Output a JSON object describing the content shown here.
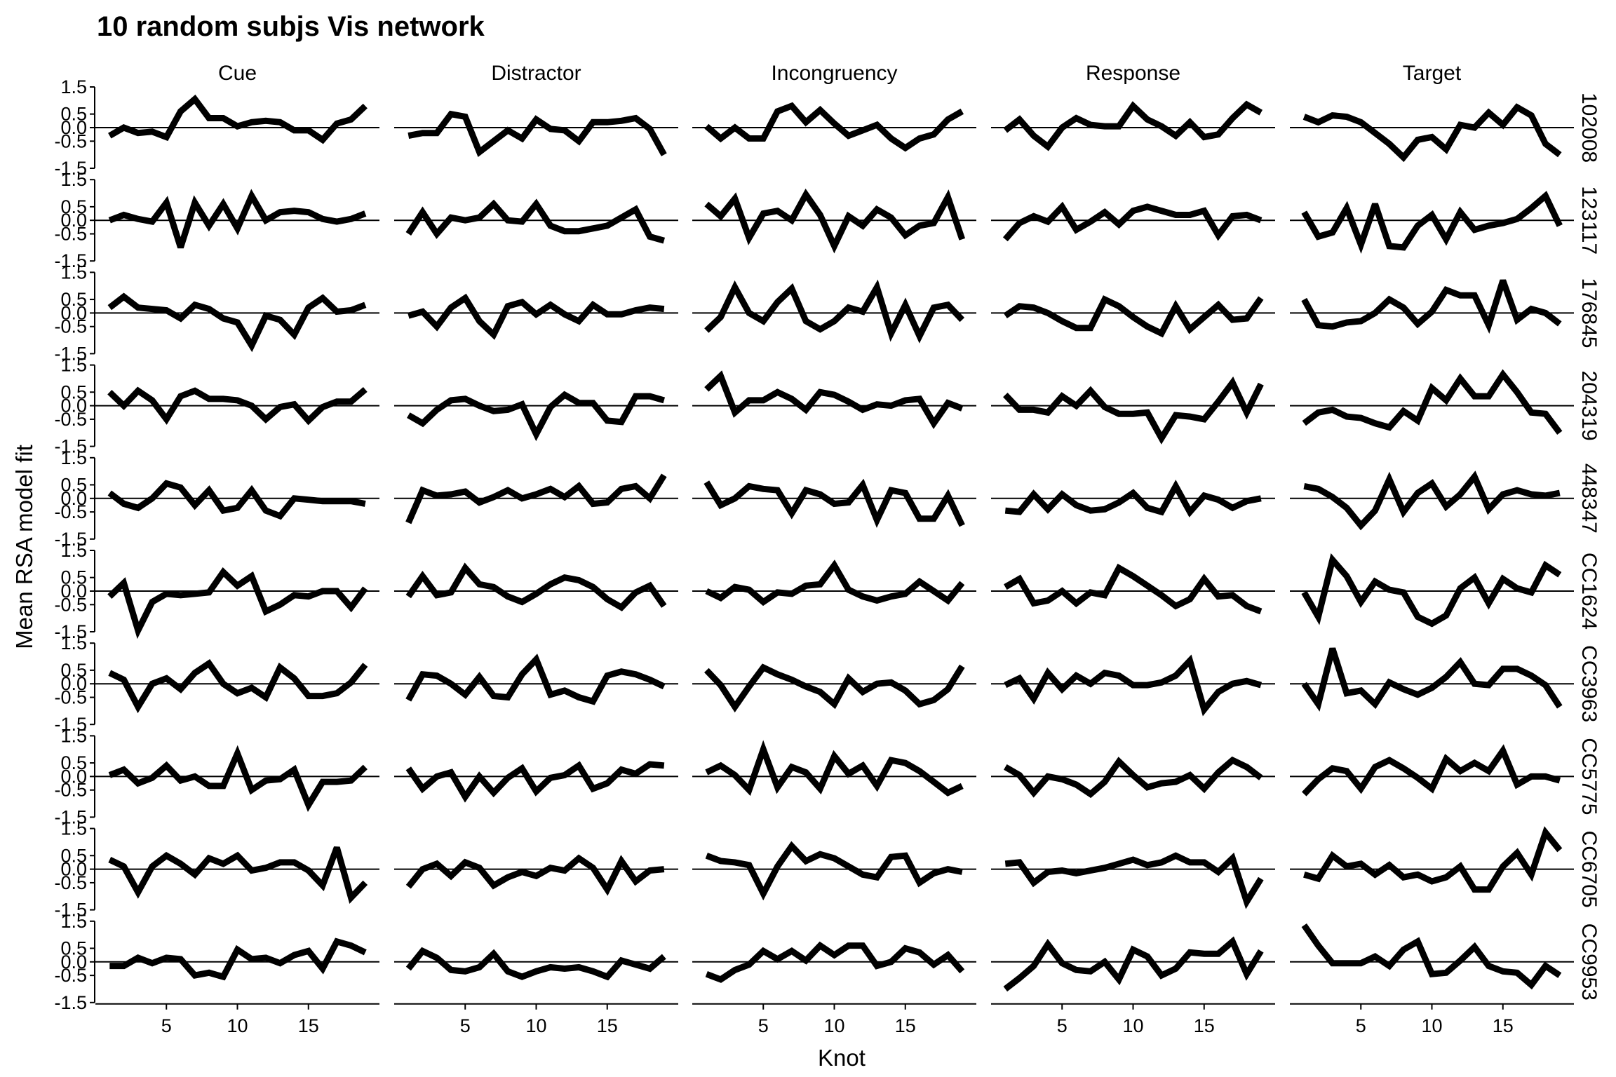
{
  "chart_data": {
    "type": "line",
    "title": "10 random subjs Vis network",
    "xlabel": "Knot",
    "ylabel": "Mean RSA model fit",
    "columns": [
      "Cue",
      "Distractor",
      "Incongruency",
      "Response",
      "Target"
    ],
    "rows": [
      "102008",
      "123117",
      "176845",
      "204319",
      "448347",
      "CC1624",
      "CC3963",
      "CC5775",
      "CC6705",
      "CC9953"
    ],
    "x": [
      1,
      2,
      3,
      4,
      5,
      6,
      7,
      8,
      9,
      10,
      11,
      12,
      13,
      14,
      15,
      16,
      17,
      18,
      19
    ],
    "xlim": [
      0,
      20
    ],
    "ylim": [
      -1.5,
      1.5
    ],
    "xticks": [
      5,
      10,
      15
    ],
    "yticks": [
      "1.5",
      "0.5",
      "0.0",
      "-0.5",
      "-1.5"
    ],
    "reference_line_y": 0,
    "values": [
      [
        [
          -0.3,
          0.0,
          -0.2,
          -0.15,
          -0.35,
          0.6,
          1.05,
          0.35,
          0.35,
          0.05,
          0.2,
          0.25,
          0.2,
          -0.1,
          -0.1,
          -0.45,
          0.15,
          0.3,
          0.8
        ],
        [
          -0.3,
          -0.2,
          -0.2,
          0.5,
          0.4,
          -0.9,
          -0.5,
          -0.1,
          -0.4,
          0.3,
          -0.05,
          -0.1,
          -0.5,
          0.2,
          0.2,
          0.25,
          0.35,
          -0.05,
          -1.0
        ],
        [
          0.05,
          -0.4,
          0.0,
          -0.4,
          -0.4,
          0.6,
          0.8,
          0.2,
          0.65,
          0.15,
          -0.3,
          -0.1,
          0.1,
          -0.4,
          -0.75,
          -0.4,
          -0.25,
          0.3,
          0.6
        ],
        [
          -0.1,
          0.3,
          -0.3,
          -0.7,
          0.0,
          0.35,
          0.1,
          0.05,
          0.05,
          0.8,
          0.3,
          0.05,
          -0.3,
          0.2,
          -0.35,
          -0.25,
          0.35,
          0.85,
          0.55
        ],
        [
          0.4,
          0.2,
          0.45,
          0.4,
          0.2,
          -0.2,
          -0.6,
          -1.1,
          -0.45,
          -0.35,
          -0.8,
          0.1,
          0.0,
          0.55,
          0.1,
          0.75,
          0.45,
          -0.6,
          -1.0
        ]
      ],
      [
        [
          0.0,
          0.2,
          0.05,
          -0.05,
          0.65,
          -1.0,
          0.65,
          -0.2,
          0.6,
          -0.3,
          0.9,
          0.0,
          0.3,
          0.35,
          0.3,
          0.05,
          -0.05,
          0.05,
          0.25
        ],
        [
          -0.5,
          0.3,
          -0.5,
          0.1,
          0.0,
          0.1,
          0.6,
          0.0,
          -0.05,
          0.6,
          -0.2,
          -0.4,
          -0.4,
          -0.3,
          -0.2,
          0.1,
          0.4,
          -0.6,
          -0.75
        ],
        [
          0.6,
          0.15,
          0.8,
          -0.65,
          0.25,
          0.35,
          0.0,
          0.95,
          0.2,
          -0.95,
          0.15,
          -0.2,
          0.4,
          0.1,
          -0.55,
          -0.2,
          -0.1,
          0.85,
          -0.7
        ],
        [
          -0.7,
          -0.1,
          0.15,
          -0.05,
          0.5,
          -0.35,
          -0.05,
          0.3,
          -0.15,
          0.35,
          0.5,
          0.35,
          0.2,
          0.2,
          0.35,
          -0.55,
          0.15,
          0.2,
          0.0
        ],
        [
          0.3,
          -0.6,
          -0.45,
          0.45,
          -0.9,
          0.6,
          -0.95,
          -1.0,
          -0.2,
          0.2,
          -0.7,
          0.3,
          -0.35,
          -0.2,
          -0.1,
          0.05,
          0.45,
          0.9,
          -0.2
        ]
      ],
      [
        [
          0.2,
          0.6,
          0.2,
          0.15,
          0.1,
          -0.2,
          0.3,
          0.15,
          -0.2,
          -0.35,
          -1.2,
          -0.1,
          -0.25,
          -0.8,
          0.2,
          0.55,
          0.05,
          0.1,
          0.3
        ],
        [
          -0.1,
          0.05,
          -0.5,
          0.2,
          0.55,
          -0.3,
          -0.8,
          0.25,
          0.4,
          -0.05,
          0.3,
          -0.05,
          -0.3,
          0.3,
          -0.05,
          -0.05,
          0.1,
          0.2,
          0.15
        ],
        [
          -0.65,
          -0.15,
          0.95,
          0.0,
          -0.3,
          0.4,
          0.9,
          -0.3,
          -0.6,
          -0.3,
          0.2,
          0.05,
          0.95,
          -0.75,
          0.3,
          -0.85,
          0.2,
          0.3,
          -0.25
        ],
        [
          -0.1,
          0.25,
          0.2,
          0.0,
          -0.3,
          -0.55,
          -0.55,
          0.5,
          0.25,
          -0.15,
          -0.5,
          -0.75,
          0.25,
          -0.6,
          -0.15,
          0.3,
          -0.25,
          -0.2,
          0.55
        ],
        [
          0.5,
          -0.45,
          -0.5,
          -0.35,
          -0.3,
          0.0,
          0.5,
          0.2,
          -0.4,
          0.05,
          0.85,
          0.65,
          0.65,
          -0.45,
          1.2,
          -0.25,
          0.15,
          0.0,
          -0.4
        ]
      ],
      [
        [
          0.5,
          0.0,
          0.55,
          0.2,
          -0.5,
          0.35,
          0.55,
          0.25,
          0.25,
          0.2,
          0.0,
          -0.5,
          -0.05,
          0.05,
          -0.55,
          -0.05,
          0.15,
          0.15,
          0.6
        ],
        [
          -0.35,
          -0.65,
          -0.15,
          0.2,
          0.25,
          0.0,
          -0.2,
          -0.15,
          0.05,
          -1.05,
          -0.05,
          0.4,
          0.1,
          0.1,
          -0.55,
          -0.6,
          0.35,
          0.35,
          0.2
        ],
        [
          0.6,
          1.1,
          -0.25,
          0.2,
          0.2,
          0.5,
          0.25,
          -0.15,
          0.5,
          0.4,
          0.15,
          -0.15,
          0.05,
          0.0,
          0.2,
          0.25,
          -0.65,
          0.1,
          -0.1
        ],
        [
          0.4,
          -0.15,
          -0.15,
          -0.25,
          0.35,
          0.0,
          0.55,
          -0.05,
          -0.3,
          -0.3,
          -0.25,
          -1.2,
          -0.35,
          -0.4,
          -0.5,
          0.15,
          0.85,
          -0.25,
          0.8
        ],
        [
          -0.65,
          -0.25,
          -0.15,
          -0.4,
          -0.45,
          -0.65,
          -0.8,
          -0.2,
          -0.55,
          0.65,
          0.2,
          1.0,
          0.35,
          0.35,
          1.15,
          0.5,
          -0.25,
          -0.3,
          -1.0
        ]
      ],
      [
        [
          0.2,
          -0.2,
          -0.35,
          0.0,
          0.55,
          0.4,
          -0.25,
          0.3,
          -0.45,
          -0.35,
          0.3,
          -0.45,
          -0.65,
          0.0,
          -0.05,
          -0.1,
          -0.1,
          -0.1,
          -0.2
        ],
        [
          -0.9,
          0.3,
          0.1,
          0.15,
          0.25,
          -0.15,
          0.05,
          0.3,
          0.0,
          0.15,
          0.35,
          0.05,
          0.45,
          -0.2,
          -0.15,
          0.35,
          0.45,
          0.0,
          0.85
        ],
        [
          0.6,
          -0.25,
          0.0,
          0.45,
          0.35,
          0.3,
          -0.55,
          0.3,
          0.15,
          -0.2,
          -0.15,
          0.5,
          -0.8,
          0.3,
          0.2,
          -0.75,
          -0.75,
          0.1,
          -1.0
        ],
        [
          -0.45,
          -0.5,
          0.15,
          -0.4,
          0.15,
          -0.25,
          -0.45,
          -0.4,
          -0.15,
          0.2,
          -0.35,
          -0.5,
          0.45,
          -0.5,
          0.1,
          -0.05,
          -0.35,
          -0.1,
          0.0
        ],
        [
          0.45,
          0.35,
          0.05,
          -0.35,
          -1.0,
          -0.45,
          0.7,
          -0.5,
          0.2,
          0.55,
          -0.3,
          0.15,
          0.8,
          -0.4,
          0.15,
          0.3,
          0.15,
          0.1,
          0.2
        ]
      ],
      [
        [
          -0.2,
          0.3,
          -1.45,
          -0.4,
          -0.1,
          -0.15,
          -0.1,
          -0.05,
          0.7,
          0.2,
          0.55,
          -0.75,
          -0.5,
          -0.15,
          -0.2,
          0.0,
          0.0,
          -0.6,
          0.1
        ],
        [
          -0.2,
          0.55,
          -0.15,
          -0.05,
          0.85,
          0.25,
          0.15,
          -0.2,
          -0.4,
          -0.1,
          0.25,
          0.5,
          0.4,
          0.15,
          -0.3,
          -0.6,
          -0.05,
          0.2,
          -0.55
        ],
        [
          0.0,
          -0.25,
          0.15,
          0.05,
          -0.4,
          -0.05,
          -0.1,
          0.2,
          0.25,
          0.95,
          0.05,
          -0.2,
          -0.35,
          -0.2,
          -0.1,
          0.35,
          0.0,
          -0.35,
          0.3
        ],
        [
          0.15,
          0.45,
          -0.45,
          -0.35,
          0.0,
          -0.45,
          -0.05,
          -0.15,
          0.85,
          0.55,
          0.2,
          -0.15,
          -0.55,
          -0.3,
          0.45,
          -0.2,
          -0.15,
          -0.55,
          -0.75
        ],
        [
          -0.05,
          -0.95,
          1.15,
          0.55,
          -0.4,
          0.35,
          0.05,
          -0.05,
          -0.95,
          -1.2,
          -0.9,
          0.1,
          0.5,
          -0.45,
          0.45,
          0.1,
          -0.05,
          0.95,
          0.6
        ]
      ],
      [
        [
          0.4,
          0.15,
          -0.85,
          0.0,
          0.2,
          -0.2,
          0.4,
          0.75,
          0.0,
          -0.35,
          -0.15,
          -0.5,
          0.6,
          0.2,
          -0.45,
          -0.45,
          -0.35,
          0.05,
          0.7
        ],
        [
          -0.6,
          0.35,
          0.3,
          0.0,
          -0.4,
          0.25,
          -0.45,
          -0.5,
          0.35,
          0.9,
          -0.4,
          -0.25,
          -0.5,
          -0.65,
          0.3,
          0.45,
          0.35,
          0.15,
          -0.1
        ],
        [
          0.5,
          -0.05,
          -0.85,
          -0.1,
          0.6,
          0.35,
          0.15,
          -0.1,
          -0.3,
          -0.75,
          0.2,
          -0.3,
          0.0,
          0.05,
          -0.25,
          -0.75,
          -0.6,
          -0.2,
          0.65
        ],
        [
          -0.05,
          0.2,
          -0.55,
          0.4,
          -0.2,
          0.3,
          0.0,
          0.4,
          0.3,
          -0.05,
          -0.05,
          0.05,
          0.3,
          0.85,
          -0.95,
          -0.3,
          0.0,
          0.1,
          -0.05
        ],
        [
          0.0,
          -0.75,
          1.3,
          -0.35,
          -0.25,
          -0.75,
          0.05,
          -0.2,
          -0.4,
          -0.15,
          0.25,
          0.8,
          0.0,
          -0.05,
          0.55,
          0.55,
          0.3,
          -0.05,
          -0.85
        ]
      ],
      [
        [
          0.05,
          0.25,
          -0.25,
          -0.05,
          0.4,
          -0.15,
          0.0,
          -0.35,
          -0.35,
          0.85,
          -0.5,
          -0.15,
          -0.1,
          0.25,
          -1.05,
          -0.2,
          -0.2,
          -0.15,
          0.35
        ],
        [
          0.3,
          -0.45,
          0.0,
          0.15,
          -0.75,
          0.0,
          -0.6,
          -0.05,
          0.3,
          -0.55,
          -0.05,
          0.05,
          0.4,
          -0.45,
          -0.25,
          0.25,
          0.1,
          0.45,
          0.4
        ],
        [
          0.15,
          0.4,
          0.05,
          -0.5,
          1.0,
          -0.4,
          0.35,
          0.15,
          -0.45,
          0.75,
          0.1,
          0.4,
          -0.35,
          0.6,
          0.5,
          0.2,
          -0.2,
          -0.6,
          -0.35
        ],
        [
          0.35,
          0.05,
          -0.6,
          0.0,
          -0.1,
          -0.3,
          -0.65,
          -0.2,
          0.55,
          0.05,
          -0.4,
          -0.25,
          -0.2,
          0.05,
          -0.45,
          0.15,
          0.6,
          0.35,
          -0.05
        ],
        [
          -0.65,
          -0.1,
          0.3,
          0.2,
          -0.45,
          0.35,
          0.6,
          0.3,
          -0.05,
          -0.45,
          0.65,
          0.2,
          0.5,
          0.2,
          0.95,
          -0.3,
          0.0,
          0.0,
          -0.15
        ]
      ],
      [
        [
          0.35,
          0.1,
          -0.85,
          0.1,
          0.5,
          0.2,
          -0.2,
          0.4,
          0.2,
          0.5,
          -0.05,
          0.05,
          0.25,
          0.25,
          -0.05,
          -0.6,
          0.8,
          -1.05,
          -0.5
        ],
        [
          -0.65,
          0.0,
          0.2,
          -0.25,
          0.25,
          0.05,
          -0.6,
          -0.3,
          -0.1,
          -0.25,
          0.05,
          -0.05,
          0.4,
          0.05,
          -0.75,
          0.3,
          -0.45,
          -0.05,
          0.0
        ],
        [
          0.5,
          0.3,
          0.25,
          0.15,
          -0.9,
          0.1,
          0.85,
          0.3,
          0.55,
          0.4,
          0.1,
          -0.2,
          -0.3,
          0.45,
          0.5,
          -0.5,
          -0.15,
          0.0,
          -0.1
        ],
        [
          0.2,
          0.25,
          -0.5,
          -0.1,
          -0.05,
          -0.15,
          -0.05,
          0.05,
          0.2,
          0.35,
          0.15,
          0.25,
          0.5,
          0.25,
          0.25,
          -0.1,
          0.4,
          -1.2,
          -0.35
        ],
        [
          -0.2,
          -0.35,
          0.5,
          0.1,
          0.2,
          -0.2,
          0.15,
          -0.3,
          -0.2,
          -0.45,
          -0.3,
          0.1,
          -0.75,
          -0.75,
          0.1,
          0.6,
          -0.2,
          1.35,
          0.7
        ]
      ],
      [
        [
          -0.15,
          -0.15,
          0.15,
          -0.05,
          0.15,
          0.1,
          -0.5,
          -0.4,
          -0.55,
          0.45,
          0.1,
          0.15,
          -0.05,
          0.25,
          0.4,
          -0.25,
          0.75,
          0.6,
          0.35
        ],
        [
          -0.25,
          0.4,
          0.15,
          -0.3,
          -0.35,
          -0.2,
          0.3,
          -0.35,
          -0.55,
          -0.35,
          -0.2,
          -0.25,
          -0.2,
          -0.35,
          -0.55,
          0.05,
          -0.1,
          -0.25,
          0.2
        ],
        [
          -0.45,
          -0.65,
          -0.3,
          -0.1,
          0.4,
          0.1,
          0.4,
          0.05,
          0.6,
          0.25,
          0.6,
          0.6,
          -0.15,
          0.0,
          0.5,
          0.35,
          -0.1,
          0.25,
          -0.35
        ],
        [
          -1.0,
          -0.6,
          -0.15,
          0.65,
          -0.05,
          -0.3,
          -0.35,
          0.0,
          -0.65,
          0.45,
          0.2,
          -0.5,
          -0.25,
          0.35,
          0.3,
          0.3,
          0.75,
          -0.45,
          0.4
        ],
        [
          1.35,
          0.6,
          -0.05,
          -0.05,
          -0.05,
          0.2,
          -0.15,
          0.45,
          0.75,
          -0.45,
          -0.4,
          0.05,
          0.55,
          -0.15,
          -0.35,
          -0.4,
          -0.85,
          -0.15,
          -0.5
        ]
      ]
    ]
  }
}
